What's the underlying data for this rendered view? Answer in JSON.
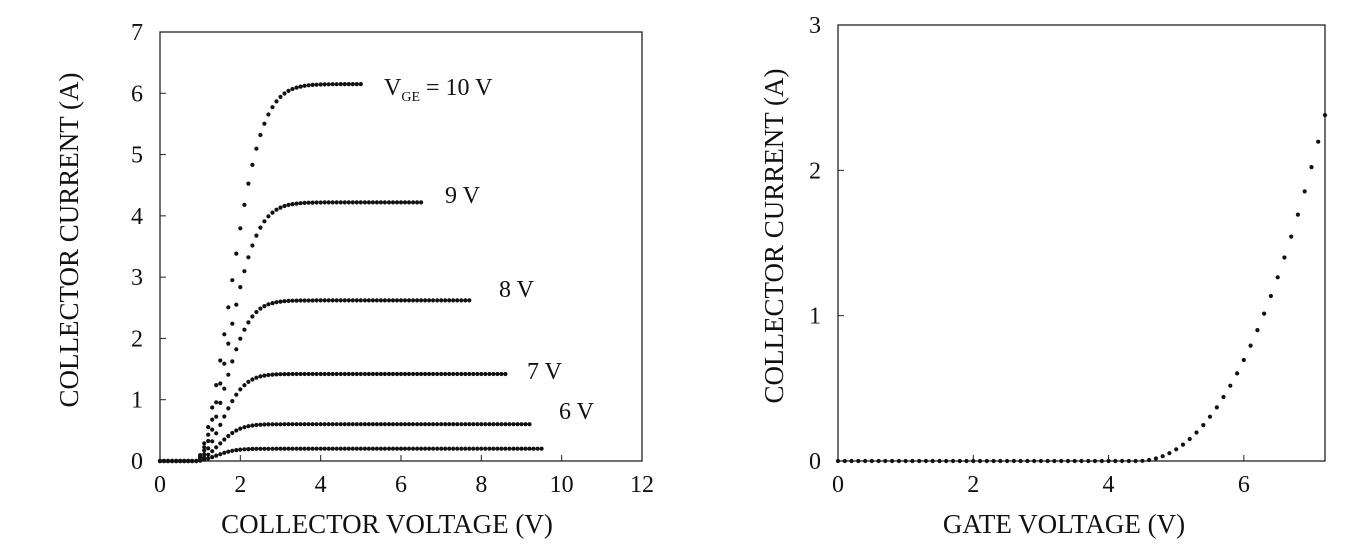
{
  "chart_data": [
    {
      "type": "scatter",
      "xlabel": "COLLECTOR VOLTAGE (V)",
      "ylabel": "COLLECTOR CURRENT (A)",
      "xlim": [
        0,
        12
      ],
      "ylim": [
        0,
        7
      ],
      "xticks": [
        "0",
        "2",
        "4",
        "6",
        "8",
        "10",
        "12"
      ],
      "yticks": [
        "0",
        "1",
        "2",
        "3",
        "4",
        "5",
        "6",
        "7"
      ],
      "grid": false,
      "series": [
        {
          "name": "V",
          "name_sub": "GE",
          "name_suffix": " = 10 V",
          "vce_end": 5.0,
          "sat": 6.15,
          "knee": 1.35,
          "x": 1.0,
          "values": "saturating curve to 6.15 A, plotted from 1.0 V to 5.0 V"
        },
        {
          "name": "9 V",
          "vce_end": 6.5,
          "sat": 4.22,
          "knee": 1.25,
          "x": 1.0,
          "values": "saturating curve to 4.22 A"
        },
        {
          "name": "8 V",
          "vce_end": 7.7,
          "sat": 2.62,
          "knee": 1.1,
          "x": 1.0,
          "values": "saturating curve to 2.62 A"
        },
        {
          "name": "7 V",
          "vce_end": 8.6,
          "sat": 1.42,
          "knee": 1.0,
          "x": 1.0,
          "values": "saturating curve to 1.42 A"
        },
        {
          "name": "6 V",
          "vce_end": 9.2,
          "sat": 0.6,
          "knee": 0.9,
          "x": 1.0,
          "values": "saturating curve to 0.60 A"
        },
        {
          "name": "",
          "vce_end": 9.5,
          "sat": 0.2,
          "knee": 0.8,
          "x": 1.0,
          "values": "saturating curve to 0.20 A"
        }
      ]
    },
    {
      "type": "scatter",
      "xlabel": "GATE VOLTAGE (V)",
      "ylabel": "COLLECTOR CURRENT (A)",
      "xlim": [
        0,
        7.2
      ],
      "ylim": [
        0,
        3
      ],
      "xticks": [
        "0",
        "2",
        "4",
        "6"
      ],
      "yticks": [
        "0",
        "1",
        "2",
        "3"
      ],
      "grid": false,
      "series": [
        {
          "threshold": 5.0,
          "x_end": 7.2,
          "y_end": 2.38
        }
      ]
    }
  ]
}
